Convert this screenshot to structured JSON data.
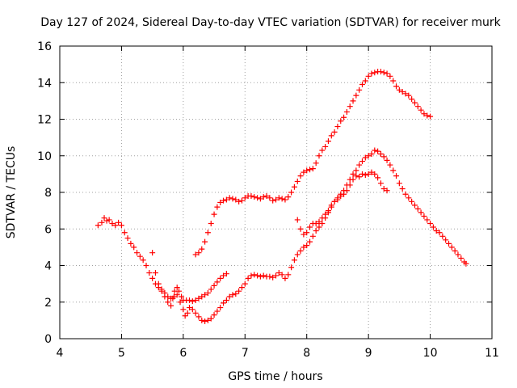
{
  "chart_data": {
    "type": "scatter",
    "title": "Day 127 of 2024, Sidereal Day-to-day VTEC variation (SDTVAR) for receiver murk",
    "xlabel": "GPS time / hours",
    "ylabel": "SDTVAR / TECUs",
    "xlim": [
      4,
      11
    ],
    "ylim": [
      0,
      16
    ],
    "x_ticks": [
      "4",
      "5",
      "6",
      "7",
      "8",
      "9",
      "10",
      "11"
    ],
    "y_ticks": [
      "0",
      "2",
      "4",
      "6",
      "8",
      "10",
      "12",
      "14",
      "16"
    ],
    "grid": true,
    "marker": "plus",
    "color": "#ff0000",
    "series": [
      {
        "points": [
          [
            4.62,
            6.2
          ],
          [
            4.68,
            6.35
          ],
          [
            4.72,
            6.6
          ],
          [
            4.76,
            6.45
          ],
          [
            4.8,
            6.5
          ],
          [
            4.85,
            6.3
          ],
          [
            4.9,
            6.2
          ],
          [
            4.95,
            6.35
          ],
          [
            5.0,
            6.2
          ],
          [
            5.05,
            5.8
          ],
          [
            5.1,
            5.5
          ],
          [
            5.15,
            5.2
          ],
          [
            5.2,
            5.0
          ],
          [
            5.25,
            4.7
          ],
          [
            5.3,
            4.5
          ],
          [
            5.35,
            4.3
          ],
          [
            5.4,
            4.0
          ],
          [
            5.45,
            3.6
          ],
          [
            5.5,
            3.3
          ],
          [
            5.55,
            3.0
          ],
          [
            5.6,
            2.8
          ],
          [
            5.65,
            2.6
          ],
          [
            5.7,
            2.3
          ],
          [
            5.75,
            2.0
          ],
          [
            5.8,
            1.8
          ],
          [
            5.83,
            2.2
          ],
          [
            5.86,
            2.6
          ],
          [
            5.9,
            2.8
          ],
          [
            5.93,
            2.6
          ],
          [
            5.97,
            2.3
          ],
          [
            6.0,
            2.1
          ],
          [
            6.05,
            2.1
          ],
          [
            6.1,
            2.1
          ],
          [
            6.15,
            2.05
          ],
          [
            6.2,
            2.1
          ],
          [
            6.25,
            2.2
          ],
          [
            6.3,
            2.3
          ],
          [
            6.35,
            2.4
          ],
          [
            6.4,
            2.5
          ],
          [
            6.45,
            2.7
          ],
          [
            6.5,
            2.9
          ],
          [
            6.55,
            3.1
          ],
          [
            6.6,
            3.3
          ],
          [
            6.65,
            3.45
          ],
          [
            6.7,
            3.55
          ]
        ]
      },
      {
        "points": [
          [
            5.5,
            4.7
          ],
          [
            5.55,
            3.6
          ],
          [
            5.6,
            3.0
          ],
          [
            5.65,
            2.7
          ],
          [
            5.7,
            2.5
          ],
          [
            5.75,
            2.3
          ],
          [
            5.8,
            2.2
          ],
          [
            5.85,
            2.3
          ],
          [
            5.9,
            2.4
          ],
          [
            5.95,
            2.0
          ],
          [
            6.0,
            1.6
          ],
          [
            6.03,
            1.25
          ],
          [
            6.07,
            1.4
          ],
          [
            6.1,
            1.7
          ],
          [
            6.15,
            1.6
          ],
          [
            6.2,
            1.4
          ],
          [
            6.25,
            1.2
          ],
          [
            6.3,
            1.0
          ],
          [
            6.35,
            0.95
          ],
          [
            6.4,
            1.0
          ],
          [
            6.45,
            1.1
          ],
          [
            6.5,
            1.3
          ],
          [
            6.55,
            1.5
          ],
          [
            6.6,
            1.7
          ],
          [
            6.65,
            1.95
          ],
          [
            6.7,
            2.1
          ],
          [
            6.75,
            2.3
          ],
          [
            6.8,
            2.4
          ],
          [
            6.85,
            2.45
          ],
          [
            6.9,
            2.6
          ],
          [
            6.95,
            2.8
          ],
          [
            7.0,
            3.0
          ],
          [
            7.05,
            3.3
          ],
          [
            7.1,
            3.45
          ],
          [
            7.15,
            3.5
          ],
          [
            7.2,
            3.45
          ],
          [
            7.25,
            3.4
          ],
          [
            7.3,
            3.45
          ],
          [
            7.35,
            3.4
          ],
          [
            7.4,
            3.4
          ],
          [
            7.45,
            3.35
          ],
          [
            7.5,
            3.45
          ],
          [
            7.55,
            3.6
          ],
          [
            7.6,
            3.5
          ],
          [
            7.65,
            3.3
          ],
          [
            7.7,
            3.5
          ],
          [
            7.75,
            3.9
          ],
          [
            7.8,
            4.3
          ],
          [
            7.85,
            4.6
          ],
          [
            7.9,
            4.8
          ],
          [
            7.95,
            5.0
          ],
          [
            8.0,
            5.1
          ],
          [
            8.05,
            5.3
          ],
          [
            8.1,
            5.6
          ],
          [
            8.15,
            5.9
          ],
          [
            8.2,
            6.1
          ],
          [
            8.25,
            6.3
          ],
          [
            8.3,
            6.6
          ],
          [
            8.35,
            6.9
          ],
          [
            8.4,
            7.2
          ],
          [
            8.45,
            7.5
          ],
          [
            8.5,
            7.6
          ],
          [
            8.55,
            7.8
          ],
          [
            8.6,
            7.9
          ],
          [
            8.65,
            8.1
          ],
          [
            8.7,
            8.4
          ],
          [
            8.75,
            8.7
          ],
          [
            8.8,
            8.9
          ],
          [
            8.85,
            8.85
          ],
          [
            8.9,
            9.0
          ],
          [
            8.95,
            8.95
          ],
          [
            9.0,
            9.0
          ],
          [
            9.05,
            9.1
          ],
          [
            9.1,
            9.0
          ],
          [
            9.15,
            8.8
          ],
          [
            9.2,
            8.5
          ],
          [
            9.25,
            8.2
          ],
          [
            9.3,
            8.1
          ]
        ]
      },
      {
        "points": [
          [
            6.2,
            4.6
          ],
          [
            6.25,
            4.7
          ],
          [
            6.3,
            4.9
          ],
          [
            6.35,
            5.3
          ],
          [
            6.4,
            5.8
          ],
          [
            6.45,
            6.3
          ],
          [
            6.5,
            6.8
          ],
          [
            6.55,
            7.2
          ],
          [
            6.6,
            7.45
          ],
          [
            6.65,
            7.55
          ],
          [
            6.7,
            7.6
          ],
          [
            6.75,
            7.7
          ],
          [
            6.8,
            7.65
          ],
          [
            6.85,
            7.6
          ],
          [
            6.9,
            7.5
          ],
          [
            6.95,
            7.55
          ],
          [
            7.0,
            7.7
          ],
          [
            7.05,
            7.8
          ],
          [
            7.1,
            7.8
          ],
          [
            7.15,
            7.75
          ],
          [
            7.2,
            7.7
          ],
          [
            7.25,
            7.65
          ],
          [
            7.3,
            7.75
          ],
          [
            7.35,
            7.8
          ],
          [
            7.4,
            7.7
          ],
          [
            7.45,
            7.55
          ],
          [
            7.5,
            7.6
          ],
          [
            7.55,
            7.7
          ],
          [
            7.6,
            7.65
          ],
          [
            7.65,
            7.6
          ],
          [
            7.7,
            7.75
          ],
          [
            7.75,
            8.0
          ],
          [
            7.8,
            8.3
          ],
          [
            7.85,
            8.6
          ],
          [
            7.9,
            8.9
          ],
          [
            7.95,
            9.1
          ],
          [
            8.0,
            9.2
          ],
          [
            8.05,
            9.25
          ],
          [
            8.1,
            9.3
          ],
          [
            8.15,
            9.6
          ],
          [
            8.2,
            10.0
          ],
          [
            8.25,
            10.3
          ],
          [
            8.3,
            10.5
          ],
          [
            8.35,
            10.8
          ],
          [
            8.4,
            11.1
          ],
          [
            8.45,
            11.3
          ],
          [
            8.5,
            11.6
          ],
          [
            8.55,
            11.9
          ],
          [
            8.6,
            12.1
          ],
          [
            8.65,
            12.4
          ],
          [
            8.7,
            12.7
          ],
          [
            8.75,
            13.0
          ],
          [
            8.8,
            13.3
          ],
          [
            8.85,
            13.6
          ],
          [
            8.9,
            13.9
          ],
          [
            8.95,
            14.1
          ],
          [
            9.0,
            14.35
          ],
          [
            9.05,
            14.5
          ],
          [
            9.1,
            14.55
          ],
          [
            9.15,
            14.6
          ],
          [
            9.2,
            14.6
          ],
          [
            9.25,
            14.55
          ],
          [
            9.3,
            14.5
          ],
          [
            9.35,
            14.35
          ],
          [
            9.4,
            14.1
          ],
          [
            9.45,
            13.8
          ],
          [
            9.5,
            13.6
          ],
          [
            9.55,
            13.5
          ],
          [
            9.6,
            13.4
          ],
          [
            9.65,
            13.3
          ],
          [
            9.7,
            13.1
          ],
          [
            9.75,
            12.9
          ],
          [
            9.8,
            12.7
          ],
          [
            9.85,
            12.5
          ],
          [
            9.9,
            12.3
          ],
          [
            9.95,
            12.2
          ],
          [
            10.0,
            12.15
          ]
        ]
      },
      {
        "points": [
          [
            7.85,
            6.5
          ],
          [
            7.9,
            6.0
          ],
          [
            7.95,
            5.7
          ],
          [
            8.0,
            5.8
          ],
          [
            8.05,
            6.1
          ],
          [
            8.1,
            6.3
          ],
          [
            8.15,
            6.3
          ],
          [
            8.2,
            6.4
          ],
          [
            8.25,
            6.6
          ],
          [
            8.3,
            6.8
          ],
          [
            8.35,
            7.0
          ],
          [
            8.4,
            7.3
          ],
          [
            8.45,
            7.5
          ],
          [
            8.5,
            7.7
          ],
          [
            8.55,
            7.9
          ],
          [
            8.6,
            8.1
          ],
          [
            8.65,
            8.4
          ],
          [
            8.7,
            8.7
          ],
          [
            8.75,
            9.0
          ],
          [
            8.8,
            9.2
          ],
          [
            8.85,
            9.5
          ],
          [
            8.9,
            9.7
          ],
          [
            8.95,
            9.9
          ],
          [
            9.0,
            10.0
          ],
          [
            9.05,
            10.1
          ],
          [
            9.1,
            10.3
          ],
          [
            9.15,
            10.25
          ],
          [
            9.2,
            10.1
          ],
          [
            9.25,
            9.95
          ],
          [
            9.3,
            9.75
          ],
          [
            9.35,
            9.5
          ],
          [
            9.4,
            9.2
          ],
          [
            9.45,
            8.9
          ],
          [
            9.5,
            8.5
          ],
          [
            9.55,
            8.2
          ],
          [
            9.6,
            7.9
          ],
          [
            9.65,
            7.7
          ],
          [
            9.7,
            7.5
          ],
          [
            9.75,
            7.3
          ],
          [
            9.8,
            7.1
          ],
          [
            9.85,
            6.9
          ],
          [
            9.9,
            6.7
          ],
          [
            9.95,
            6.5
          ],
          [
            10.0,
            6.3
          ],
          [
            10.05,
            6.1
          ],
          [
            10.1,
            5.9
          ],
          [
            10.15,
            5.8
          ],
          [
            10.2,
            5.6
          ],
          [
            10.25,
            5.4
          ],
          [
            10.3,
            5.2
          ],
          [
            10.35,
            5.0
          ],
          [
            10.4,
            4.8
          ],
          [
            10.45,
            4.6
          ],
          [
            10.5,
            4.4
          ],
          [
            10.55,
            4.2
          ],
          [
            10.58,
            4.1
          ]
        ]
      }
    ]
  }
}
